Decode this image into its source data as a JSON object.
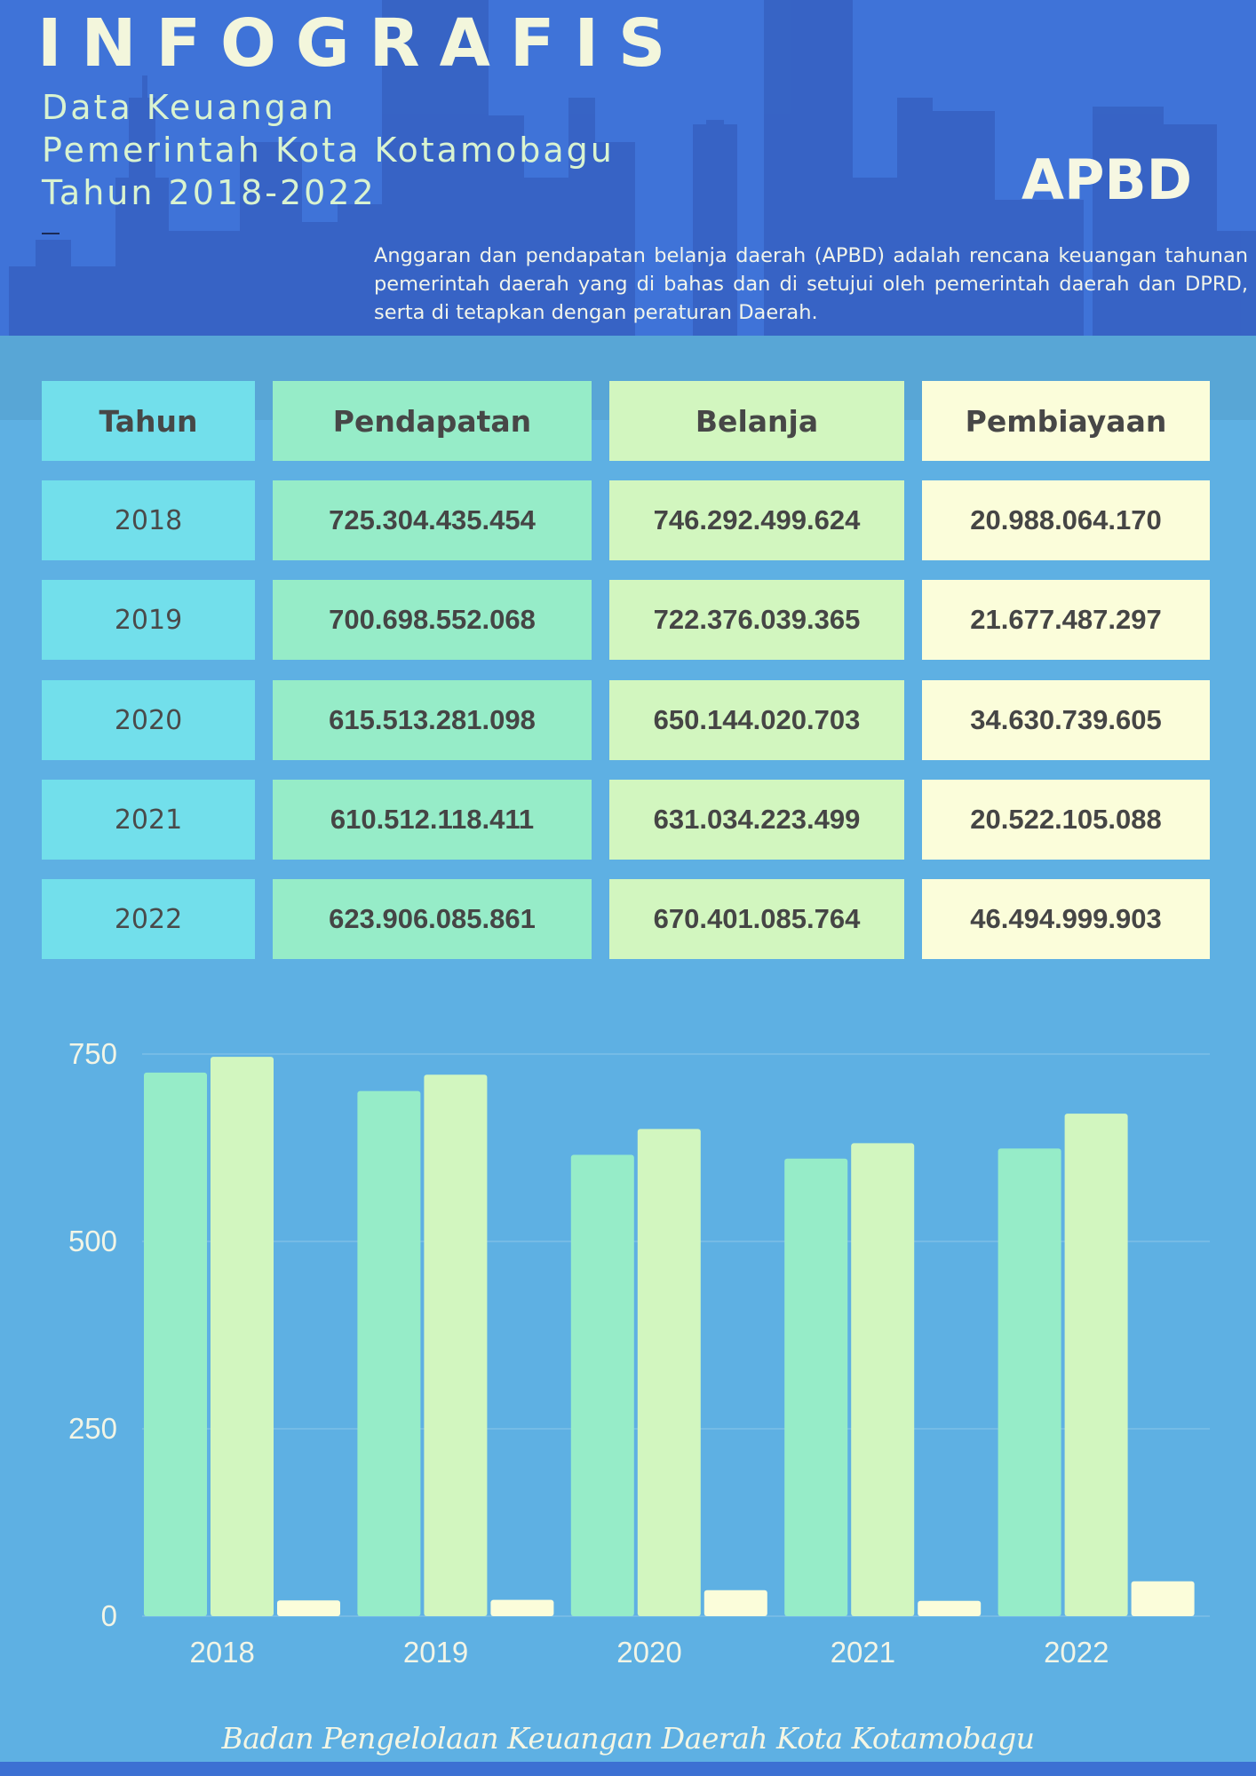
{
  "header": {
    "title": "INFOGRAFIS",
    "subtitle_lines": [
      "Data Keuangan",
      "Pemerintah Kota Kotamobagu",
      "Tahun 2018-2022"
    ],
    "apbd_label": "APBD",
    "description": "Anggaran dan pendapatan belanja daerah (APBD) adalah rencana keuangan tahunan pemerintah daerah yang di bahas dan di setujui oleh pemerintah daerah dan DPRD, serta di tetapkan dengan peraturan Daerah."
  },
  "table": {
    "headers": [
      "Tahun",
      "Pendapatan",
      "Belanja",
      "Pembiayaan"
    ],
    "rows": [
      [
        "2018",
        "725.304.435.454",
        "746.292.499.624",
        "20.988.064.170"
      ],
      [
        "2019",
        "700.698.552.068",
        "722.376.039.365",
        "21.677.487.297"
      ],
      [
        "2020",
        "615.513.281.098",
        "650.144.020.703",
        "34.630.739.605"
      ],
      [
        "2021",
        "610.512.118.411",
        "631.034.223.499",
        "20.522.105.088"
      ],
      [
        "2022",
        "623.906.085.861",
        "670.401.085.764",
        "46.494.999.903"
      ]
    ]
  },
  "chart_data": {
    "type": "bar",
    "title": "",
    "xlabel": "",
    "ylabel": "",
    "categories": [
      "2018",
      "2019",
      "2020",
      "2021",
      "2022"
    ],
    "ylim": [
      0,
      750
    ],
    "yticks": [
      0,
      250,
      500,
      750
    ],
    "grid": true,
    "legend": "none",
    "series": [
      {
        "values": [
          725.3,
          700.7,
          615.5,
          610.5,
          623.9
        ],
        "color": "#96ecc8"
      },
      {
        "values": [
          746.3,
          722.4,
          650.1,
          631.0,
          670.4
        ],
        "color": "#d2f6bf"
      },
      {
        "values": [
          21.0,
          21.7,
          34.6,
          20.5,
          46.5
        ],
        "color": "#fbfdda"
      }
    ]
  },
  "footer": {
    "text": "Badan Pengelolaan Keuangan Daerah Kota Kotamobagu"
  },
  "colors": {
    "header_bg": "#3f73d8",
    "page_bg": "#5eb0e3",
    "year_cell": "#72dfeb",
    "pendapatan_cell": "#96ecc8",
    "belanja_cell": "#d2f6bf",
    "pembiayaan_cell": "#fbfdda"
  }
}
